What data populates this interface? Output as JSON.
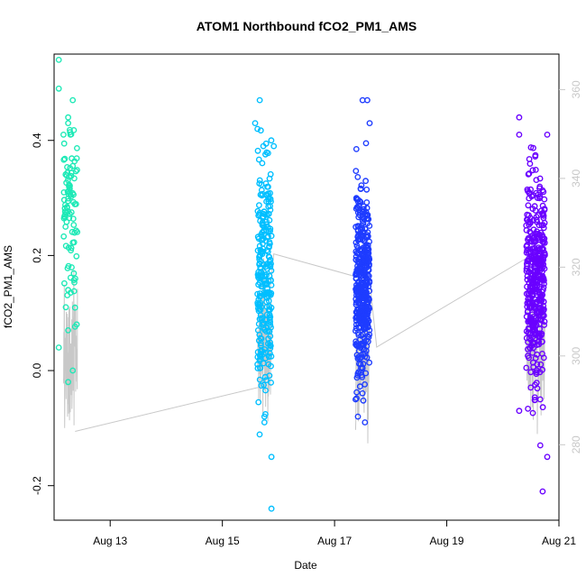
{
  "chart_data": {
    "type": "scatter",
    "title": "ATOM1 Northbound fCO2_PM1_AMS",
    "xlabel": "Date",
    "ylabel": "fCO2_PM1_AMS",
    "x_axis": {
      "kind": "date",
      "range": [
        "2016-08-12",
        "2016-08-21"
      ],
      "ticks": [
        "2016-08-13",
        "2016-08-15",
        "2016-08-17",
        "2016-08-19",
        "2016-08-21"
      ],
      "tick_labels": [
        "Aug 13",
        "Aug 15",
        "Aug 17",
        "Aug 19",
        "Aug 21"
      ]
    },
    "y_axis": {
      "range": [
        -0.26,
        0.55
      ],
      "ticks": [
        -0.2,
        0.0,
        0.2,
        0.4
      ],
      "tick_labels": [
        "-0.2",
        "0.0",
        "0.2",
        "0.4"
      ]
    },
    "y2_axis": {
      "range": [
        263,
        368
      ],
      "ticks": [
        280,
        300,
        320,
        340,
        360
      ],
      "tick_labels": [
        "280",
        "300",
        "320",
        "340",
        "360"
      ],
      "color": "#c8c8c8"
    },
    "grid": false,
    "legend": "none",
    "series": [
      {
        "color": "#1de9b6",
        "x_center": "2016-08-12T07:00",
        "x_spread_hours": 6,
        "y_mean": 0.27,
        "y_min": -0.02,
        "y_max": 0.54,
        "n": 90,
        "points": [
          {
            "x": "2016-08-12T02:00",
            "y": 0.54
          },
          {
            "x": "2016-08-12T02:00",
            "y": 0.49
          },
          {
            "x": "2016-08-12T08:00",
            "y": 0.47
          },
          {
            "x": "2016-08-12T06:00",
            "y": 0.44
          },
          {
            "x": "2016-08-12T06:00",
            "y": 0.43
          },
          {
            "x": "2016-08-12T04:00",
            "y": 0.41
          },
          {
            "x": "2016-08-12T07:00",
            "y": 0.41
          },
          {
            "x": "2016-08-12T02:00",
            "y": 0.04
          },
          {
            "x": "2016-08-12T06:00",
            "y": 0.07
          },
          {
            "x": "2016-08-12T08:00",
            "y": 0.0
          },
          {
            "x": "2016-08-12T06:00",
            "y": -0.02
          },
          {
            "x": "2016-08-12T06:00",
            "y": 0.14
          },
          {
            "x": "2016-08-12T05:00",
            "y": 0.11
          }
        ]
      },
      {
        "color": "#00bfff",
        "x_center": "2016-08-15T18:00",
        "x_spread_hours": 6,
        "y_mean": 0.17,
        "y_min": -0.24,
        "y_max": 0.47,
        "n": 260,
        "points": [
          {
            "x": "2016-08-15T16:00",
            "y": 0.47
          },
          {
            "x": "2016-08-15T14:00",
            "y": 0.43
          },
          {
            "x": "2016-08-15T15:00",
            "y": 0.42
          },
          {
            "x": "2016-08-15T22:00",
            "y": 0.39
          },
          {
            "x": "2016-08-15T21:00",
            "y": -0.15
          },
          {
            "x": "2016-08-15T21:00",
            "y": -0.24
          },
          {
            "x": "2016-08-15T18:00",
            "y": -0.09
          },
          {
            "x": "2016-08-15T18:00",
            "y": -0.08
          }
        ]
      },
      {
        "color": "#1e3cff",
        "x_center": "2016-08-17T12:00",
        "x_spread_hours": 6,
        "y_mean": 0.15,
        "y_min": -0.09,
        "y_max": 0.47,
        "n": 420,
        "points": [
          {
            "x": "2016-08-17T12:00",
            "y": 0.47
          },
          {
            "x": "2016-08-17T14:00",
            "y": 0.47
          },
          {
            "x": "2016-08-17T15:00",
            "y": 0.43
          },
          {
            "x": "2016-08-17T10:00",
            "y": -0.08
          },
          {
            "x": "2016-08-17T13:00",
            "y": -0.09
          },
          {
            "x": "2016-08-17T09:00",
            "y": -0.05
          }
        ]
      },
      {
        "color": "#6a00ff",
        "x_center": "2016-08-20T14:00",
        "x_spread_hours": 8,
        "y_mean": 0.16,
        "y_min": -0.21,
        "y_max": 0.44,
        "n": 420,
        "points": [
          {
            "x": "2016-08-20T07:00",
            "y": 0.44
          },
          {
            "x": "2016-08-20T19:00",
            "y": 0.41
          },
          {
            "x": "2016-08-20T07:00",
            "y": 0.41
          },
          {
            "x": "2016-08-20T17:00",
            "y": -0.21
          },
          {
            "x": "2016-08-20T16:00",
            "y": -0.13
          },
          {
            "x": "2016-08-20T19:00",
            "y": -0.15
          },
          {
            "x": "2016-08-20T07:00",
            "y": -0.07
          }
        ]
      }
    ],
    "background_line": {
      "color": "#c8c8c8",
      "axis": "y2",
      "anchors": [
        {
          "x": "2016-08-12T09:00",
          "y": 283
        },
        {
          "x": "2016-08-15T16:00",
          "y": 293
        },
        {
          "x": "2016-08-15T22:00",
          "y": 323
        },
        {
          "x": "2016-08-17T15:00",
          "y": 317
        },
        {
          "x": "2016-08-17T18:00",
          "y": 302
        },
        {
          "x": "2016-08-20T10:00",
          "y": 322
        }
      ]
    }
  }
}
